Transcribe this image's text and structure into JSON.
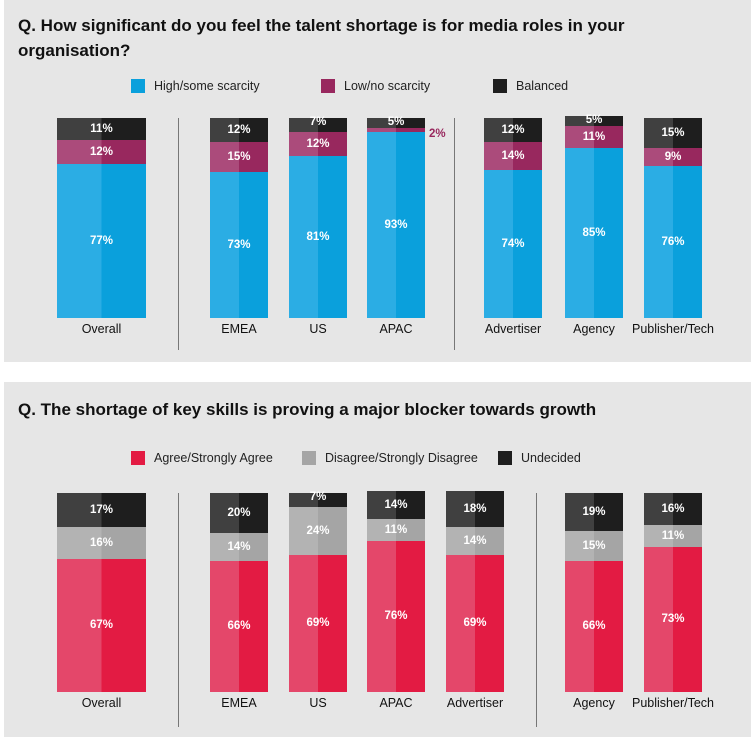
{
  "chart_data": [
    {
      "type": "bar",
      "stacked": true,
      "title": "Q. How significant do you feel the talent shortage is for media roles in your organisation?",
      "categories": [
        "Overall",
        "EMEA",
        "US",
        "APAC",
        "Advertiser",
        "Agency",
        "Publisher/Tech"
      ],
      "groups": [
        [
          "Overall"
        ],
        [
          "EMEA",
          "US",
          "APAC"
        ],
        [
          "Advertiser",
          "Agency",
          "Publisher/Tech"
        ]
      ],
      "series": [
        {
          "name": "High/some scarcity",
          "values": [
            77,
            73,
            81,
            93,
            74,
            85,
            76
          ],
          "color": "#0aa0dc",
          "color_light": "#2badE4"
        },
        {
          "name": "Low/no scarcity",
          "values": [
            12,
            15,
            12,
            2,
            14,
            11,
            9
          ],
          "color": "#98285e",
          "color_light": "#ab4b7b"
        },
        {
          "name": "Balanced",
          "values": [
            11,
            12,
            7,
            5,
            12,
            5,
            15
          ],
          "color": "#1e1e1e",
          "color_light": "#404040"
        }
      ],
      "ylim": [
        0,
        100
      ],
      "unit": "%",
      "legend": "top"
    },
    {
      "type": "bar",
      "stacked": true,
      "title": "Q. The shortage of key skills is proving a major blocker towards growth",
      "categories": [
        "Overall",
        "EMEA",
        "US",
        "APAC",
        "Advertiser",
        "Agency",
        "Publisher/Tech"
      ],
      "groups": [
        [
          "Overall"
        ],
        [
          "EMEA",
          "US",
          "APAC",
          "Advertiser"
        ],
        [
          "Agency",
          "Publisher/Tech"
        ]
      ],
      "series": [
        {
          "name": "Agree/Strongly Agree",
          "values": [
            67,
            66,
            69,
            76,
            69,
            66,
            73
          ],
          "color": "#e31b43",
          "color_light": "#e4476a"
        },
        {
          "name": "Disagree/Strongly Disagree",
          "values": [
            16,
            14,
            24,
            11,
            14,
            15,
            11
          ],
          "color": "#a5a5a5",
          "color_light": "#b3b3b3"
        },
        {
          "name": "Undecided",
          "values": [
            17,
            20,
            7,
            14,
            18,
            19,
            16
          ],
          "color": "#1e1e1e",
          "color_light": "#404040"
        }
      ],
      "ylim": [
        0,
        100
      ],
      "unit": "%",
      "legend": "top"
    }
  ]
}
